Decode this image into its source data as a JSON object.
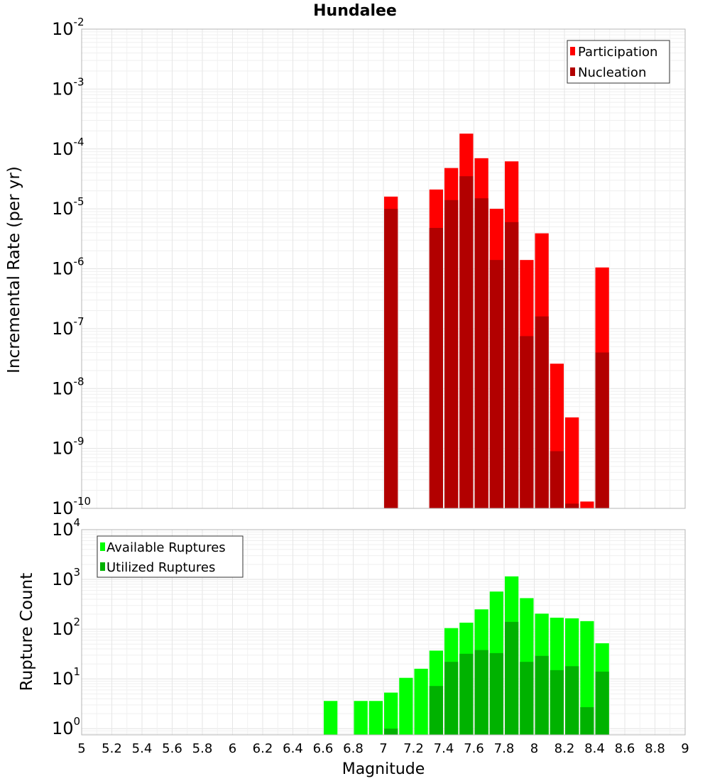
{
  "chart_data": [
    {
      "type": "bar",
      "title": "Hundalee",
      "ylabel": "Incremental Rate (per yr)",
      "xlabel": "",
      "yscale": "log",
      "ylim": [
        1e-10,
        0.01
      ],
      "xlim": [
        5,
        9
      ],
      "ytick_labels": [
        {
          "base": "10",
          "exp": "-2"
        },
        {
          "base": "10",
          "exp": "-3"
        },
        {
          "base": "10",
          "exp": "-4"
        },
        {
          "base": "10",
          "exp": "-5"
        },
        {
          "base": "10",
          "exp": "-6"
        },
        {
          "base": "10",
          "exp": "-7"
        },
        {
          "base": "10",
          "exp": "-8"
        },
        {
          "base": "10",
          "exp": "-9"
        },
        {
          "base": "10",
          "exp": "-10"
        }
      ],
      "legend_position": "top-right",
      "bar_width": 0.1,
      "series": [
        {
          "name": "Participation",
          "color": "#ff0000",
          "x": [
            7.05,
            7.35,
            7.45,
            7.55,
            7.65,
            7.75,
            7.85,
            7.95,
            8.05,
            8.15,
            8.25,
            8.35,
            8.45
          ],
          "values": [
            1.6e-05,
            2.1e-05,
            4.8e-05,
            0.00018,
            7e-05,
            1e-05,
            6.2e-05,
            1.4e-06,
            3.9e-06,
            2.6e-08,
            3.3e-09,
            1.3e-10,
            1.05e-06
          ]
        },
        {
          "name": "Nucleation",
          "color": "#b20000",
          "x": [
            7.05,
            7.35,
            7.45,
            7.55,
            7.65,
            7.75,
            7.85,
            7.95,
            8.05,
            8.15,
            8.25,
            8.35,
            8.45
          ],
          "values": [
            1e-05,
            4.8e-06,
            1.4e-05,
            3.5e-05,
            1.5e-05,
            1.4e-06,
            6e-06,
            7.5e-08,
            1.6e-07,
            9e-10,
            1.2e-10,
            1e-10,
            4e-08
          ]
        }
      ]
    },
    {
      "type": "bar",
      "title": "",
      "ylabel": "Rupture Count",
      "xlabel": "Magnitude",
      "yscale": "log",
      "ylim": [
        0.75,
        10000
      ],
      "xlim": [
        5,
        9
      ],
      "xticks": [
        "5",
        "5.2",
        "5.4",
        "5.6",
        "5.8",
        "6",
        "6.2",
        "6.4",
        "6.6",
        "6.8",
        "7",
        "7.2",
        "7.4",
        "7.6",
        "7.8",
        "8",
        "8.2",
        "8.4",
        "8.6",
        "8.8",
        "9"
      ],
      "ytick_labels": [
        {
          "base": "10",
          "exp": "4"
        },
        {
          "base": "10",
          "exp": "3"
        },
        {
          "base": "10",
          "exp": "2"
        },
        {
          "base": "10",
          "exp": "1"
        },
        {
          "base": "10",
          "exp": "0"
        }
      ],
      "legend_position": "top-left",
      "bar_width": 0.1,
      "series": [
        {
          "name": "Available Ruptures",
          "color": "#00ff00",
          "x": [
            6.65,
            6.85,
            6.95,
            7.05,
            7.15,
            7.25,
            7.35,
            7.45,
            7.55,
            7.65,
            7.75,
            7.85,
            7.95,
            8.05,
            8.15,
            8.25,
            8.35,
            8.45
          ],
          "values": [
            3.6,
            3.6,
            3.6,
            5.3,
            10.5,
            16,
            37,
            105,
            135,
            250,
            570,
            1150,
            420,
            205,
            170,
            165,
            145,
            52
          ]
        },
        {
          "name": "Utilized Ruptures",
          "color": "#00b200",
          "x": [
            7.05,
            7.35,
            7.45,
            7.55,
            7.65,
            7.75,
            7.85,
            7.95,
            8.05,
            8.15,
            8.25,
            8.35,
            8.45
          ],
          "values": [
            1.0,
            7.2,
            22,
            32,
            38,
            33,
            140,
            22,
            29,
            15,
            18,
            2.7,
            14
          ]
        }
      ]
    }
  ]
}
